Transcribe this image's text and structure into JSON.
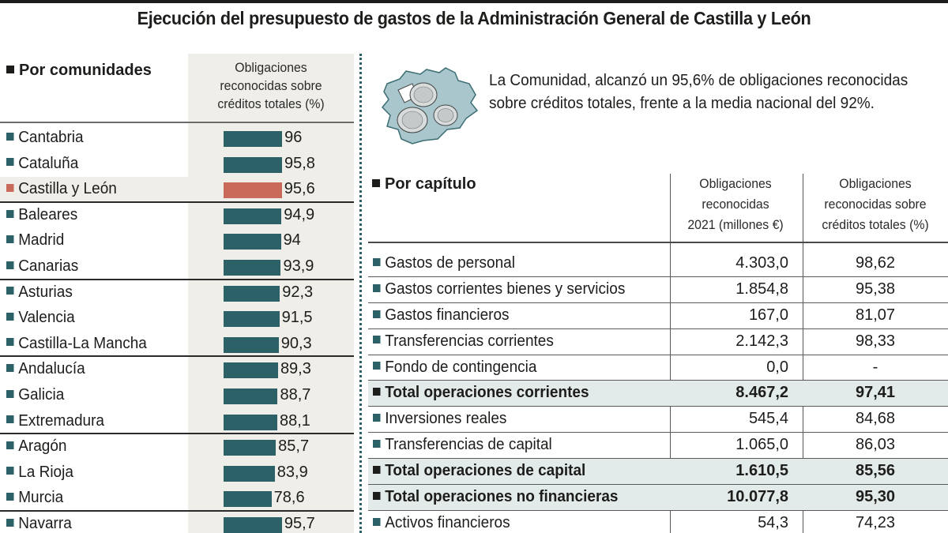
{
  "title": "Ejecución del presupuesto de gastos de la Administración General de Castilla y León",
  "colors": {
    "teal": "#2c6167",
    "highlight": "#c96a5a",
    "panel_bg": "#efeee8",
    "total_bg": "#e3ebea"
  },
  "left_panel": {
    "section_title": "Por comunidades",
    "column_header": [
      "Obligaciones",
      "reconocidas sobre",
      "créditos totales (%)"
    ]
  },
  "blurb": "La Comunidad, alcanzó un 95,6% de obligaciones reconocidas sobre créditos totales, frente a la media nacional del 92%.",
  "map_icon": "castilla-y-leon-map-with-euro-coins-icon",
  "chart_data": {
    "type": "bar",
    "orientation": "horizontal",
    "title": "Por comunidades",
    "xlabel": "Obligaciones reconocidas sobre créditos totales (%)",
    "ylabel": "",
    "xlim": [
      0,
      100
    ],
    "grid": false,
    "legend": "none",
    "categories": [
      "Cantabria",
      "Cataluña",
      "Castilla y León",
      "Baleares",
      "Madrid",
      "Canarias",
      "Asturias",
      "Valencia",
      "Castilla-La Mancha",
      "Andalucía",
      "Galicia",
      "Extremadura",
      "Aragón",
      "La Rioja",
      "Murcia",
      "Navarra"
    ],
    "values": [
      96,
      95.8,
      95.6,
      94.9,
      94,
      93.9,
      92.3,
      91.5,
      90.3,
      89.3,
      88.7,
      88.1,
      85.7,
      83.9,
      78.6,
      95.7
    ],
    "labels": [
      "96",
      "95,8",
      "95,6",
      "94,9",
      "94",
      "93,9",
      "92,3",
      "91,5",
      "90,3",
      "89,3",
      "88,7",
      "88,1",
      "85,7",
      "83,9",
      "78,6",
      "95,7"
    ],
    "highlighted": "Castilla y León",
    "group_separators_after": [
      "Castilla y León",
      "Canarias",
      "Castilla-La Mancha",
      "Extremadura",
      "Murcia"
    ]
  },
  "capitulo": {
    "section_title": "Por capítulo",
    "col1_header": [
      "Obligaciones",
      "reconocidas",
      "2021 (millones €)"
    ],
    "col2_header": [
      "Obligaciones",
      "reconocidas sobre",
      "créditos totales (%)"
    ],
    "rows": [
      {
        "name": "Gastos de personal",
        "amount": "4.303,0",
        "pct": "98,62",
        "total": false
      },
      {
        "name": "Gastos corrientes bienes y servicios",
        "amount": "1.854,8",
        "pct": "95,38",
        "total": false
      },
      {
        "name": "Gastos financieros",
        "amount": "167,0",
        "pct": "81,07",
        "total": false
      },
      {
        "name": "Transferencias corrientes",
        "amount": "2.142,3",
        "pct": "98,33",
        "total": false
      },
      {
        "name": "Fondo de contingencia",
        "amount": "0,0",
        "pct": "-",
        "total": false
      },
      {
        "name": "Total operaciones corrientes",
        "amount": "8.467,2",
        "pct": "97,41",
        "total": true
      },
      {
        "name": "Inversiones reales",
        "amount": "545,4",
        "pct": "84,68",
        "total": false
      },
      {
        "name": "Transferencias de capital",
        "amount": "1.065,0",
        "pct": "86,03",
        "total": false
      },
      {
        "name": "Total operaciones de capital",
        "amount": "1.610,5",
        "pct": "85,56",
        "total": true
      },
      {
        "name": "Total operaciones no financieras",
        "amount": "10.077,8",
        "pct": "95,30",
        "total": true
      },
      {
        "name": "Activos financieros",
        "amount": "54,3",
        "pct": "74,23",
        "total": false
      }
    ]
  }
}
